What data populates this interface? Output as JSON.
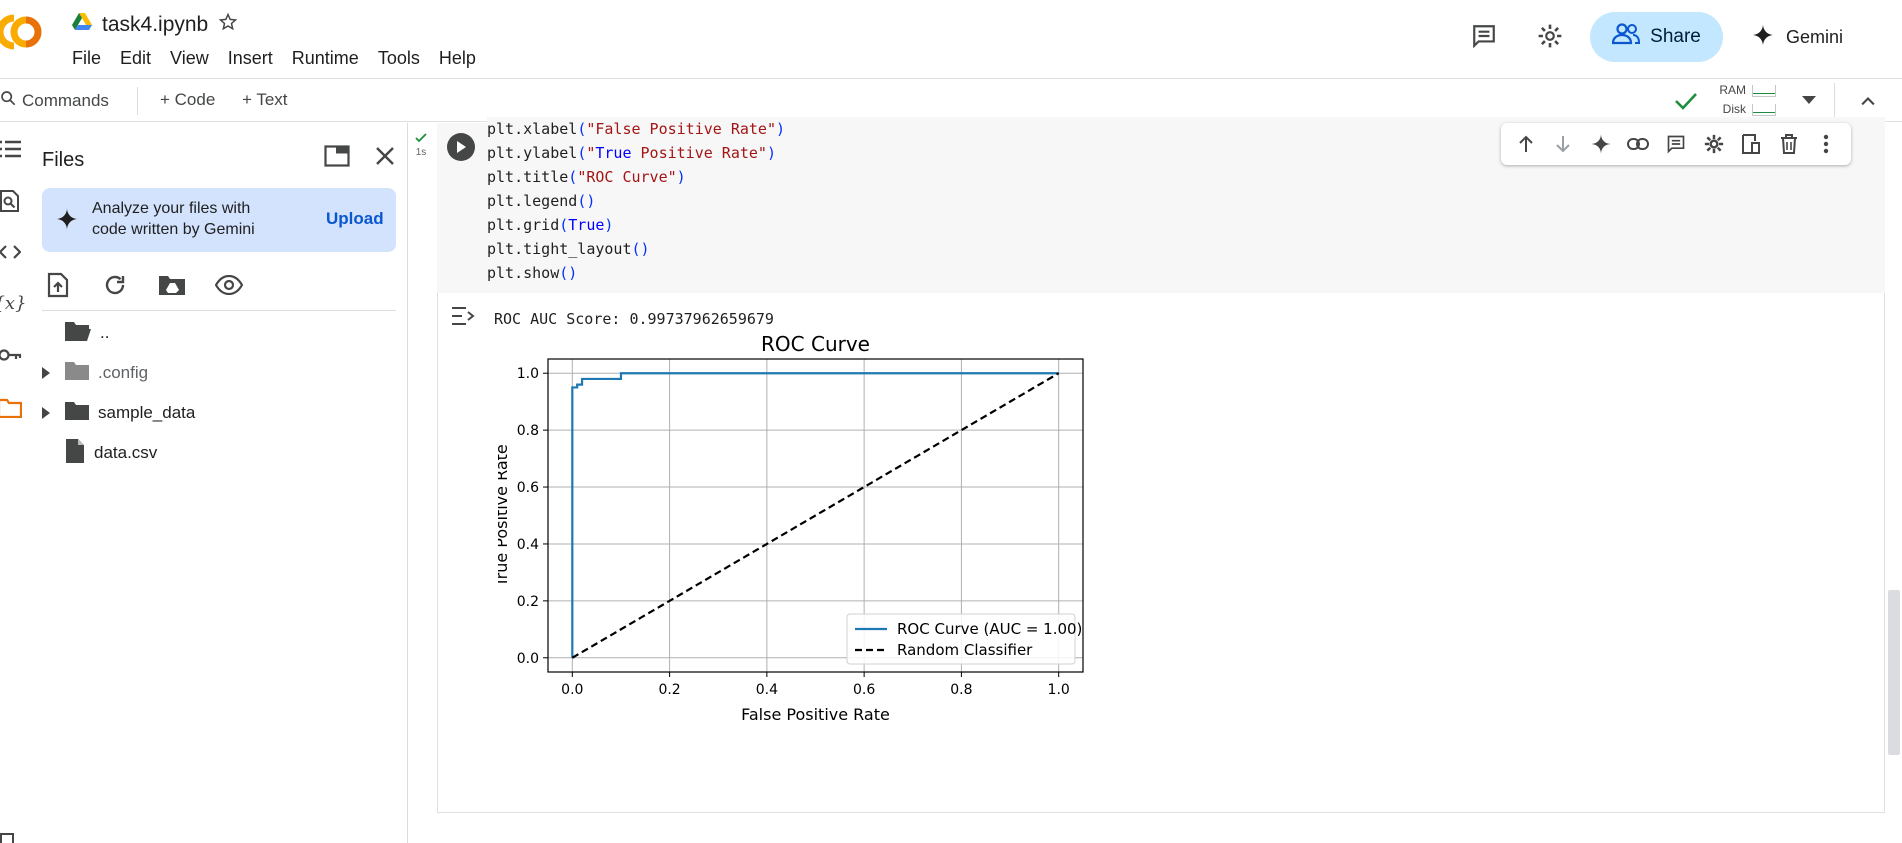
{
  "header": {
    "notebook_title": "task4.ipynb",
    "menu": [
      "File",
      "Edit",
      "View",
      "Insert",
      "Runtime",
      "Tools",
      "Help"
    ],
    "share_label": "Share",
    "gemini_label": "Gemini"
  },
  "toolbar": {
    "commands_label": "Commands",
    "code_label": "+ Code",
    "text_label": "+ Text",
    "ram_label": "RAM",
    "disk_label": "Disk"
  },
  "files_panel": {
    "title": "Files",
    "gemini_card_text": "Analyze your files with code written by Gemini",
    "upload_label": "Upload",
    "tree": [
      {
        "name": "..",
        "type": "folder-open",
        "expandable": false
      },
      {
        "name": ".config",
        "type": "folder-gray",
        "expandable": true
      },
      {
        "name": "sample_data",
        "type": "folder",
        "expandable": true
      },
      {
        "name": "data.csv",
        "type": "file",
        "expandable": false
      }
    ]
  },
  "cell": {
    "status_time": "1s",
    "code_lines": [
      "plt.xlabel(\"False Positive Rate\")",
      "plt.ylabel(\"True Positive Rate\")",
      "plt.title(\"ROC Curve\")",
      "plt.legend()",
      "plt.grid(True)",
      "plt.tight_layout()",
      "plt.show()"
    ],
    "output_text": "ROC AUC Score: 0.99737962659679"
  },
  "chart_data": {
    "type": "line",
    "title": "ROC Curve",
    "xlabel": "False Positive Rate",
    "ylabel": "True Positive Rate",
    "xlim": [
      -0.05,
      1.05
    ],
    "ylim": [
      -0.05,
      1.05
    ],
    "xticks": [
      "0.0",
      "0.2",
      "0.4",
      "0.6",
      "0.8",
      "1.0"
    ],
    "yticks": [
      "0.0",
      "0.2",
      "0.4",
      "0.6",
      "0.8",
      "1.0"
    ],
    "grid": true,
    "legend_position": "lower-right",
    "series": [
      {
        "name": "ROC Curve (AUC = 1.00)",
        "color": "#1f77b4",
        "style": "solid",
        "x": [
          0.0,
          0.0,
          0.01,
          0.01,
          0.02,
          0.02,
          0.1,
          0.1,
          1.0
        ],
        "y": [
          0.0,
          0.95,
          0.95,
          0.96,
          0.96,
          0.98,
          0.98,
          1.0,
          1.0
        ]
      },
      {
        "name": "Random Classifier",
        "color": "#000000",
        "style": "dashed",
        "x": [
          0.0,
          1.0
        ],
        "y": [
          0.0,
          1.0
        ]
      }
    ]
  },
  "colors": {
    "accent_blue": "#0b57d0",
    "share_bg": "#c2e7ff",
    "gemini_card_bg": "#d3e3fd",
    "ok_green": "#1e8e3e",
    "colab_orange": "#f9ab00"
  }
}
